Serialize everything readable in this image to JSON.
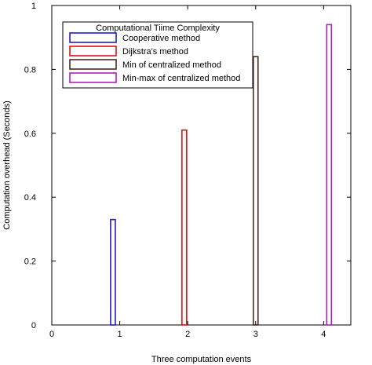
{
  "chart_data": {
    "type": "bar",
    "title": "",
    "xlabel": "Three computation events",
    "ylabel": "Computation overhead (Seconds)",
    "xlim": [
      0,
      4.4
    ],
    "ylim": [
      0,
      1
    ],
    "xticks": [
      0,
      1,
      2,
      3,
      4
    ],
    "xtick_labels": [
      "0",
      "1",
      "2",
      "3",
      "4"
    ],
    "yticks": [
      0,
      0.2,
      0.4,
      0.6,
      0.8,
      1
    ],
    "ytick_labels": [
      "0",
      "0.2",
      "0.4",
      "0.6",
      "0.8",
      "1"
    ],
    "grid": false,
    "legend": {
      "title": "Computational Tiime Complexity",
      "placement": "top-left"
    },
    "series": [
      {
        "name": "Cooperative method",
        "x": 0.9,
        "value": 0.33,
        "color": "#1f1fbf"
      },
      {
        "name": "Dijkstra's method",
        "x": 1.95,
        "value": 0.61,
        "color": "#e01010"
      },
      {
        "name": "Min of centralized method",
        "x": 3.0,
        "value": 0.84,
        "color": "#4a2a20"
      },
      {
        "name": "Min-max of centralized method",
        "x": 4.08,
        "value": 0.94,
        "color": "#b020c0"
      }
    ]
  }
}
